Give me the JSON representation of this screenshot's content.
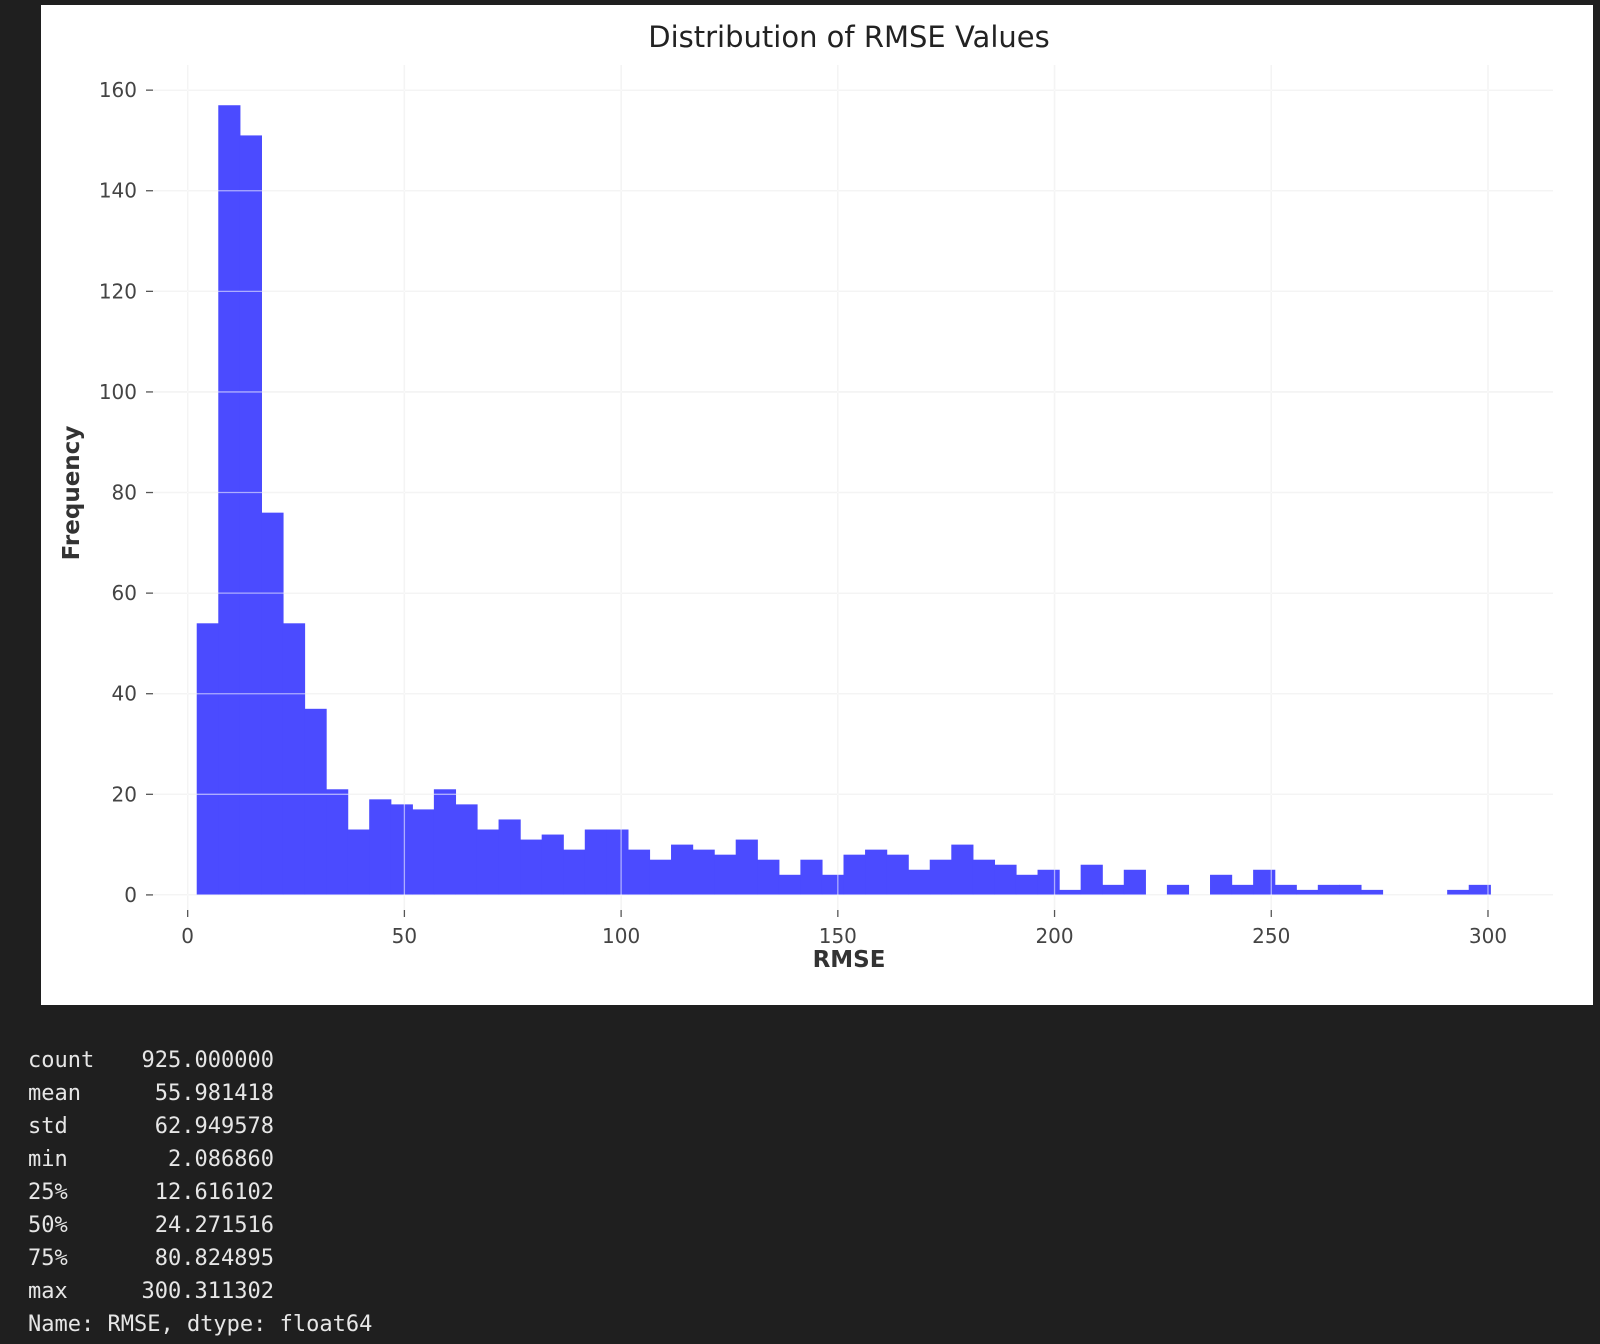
{
  "chart_data": {
    "type": "bar",
    "title": "Distribution of RMSE Values",
    "xlabel": "RMSE",
    "ylabel": "Frequency",
    "xlim": [
      -8,
      315
    ],
    "ylim": [
      -3,
      165
    ],
    "xticks": [
      0,
      50,
      100,
      150,
      200,
      250,
      300
    ],
    "yticks": [
      0,
      20,
      40,
      60,
      80,
      100,
      120,
      140,
      160
    ],
    "grid": true,
    "bar_color": "#4b4bff",
    "bin_start": 2.08686,
    "bin_width": 4.97407,
    "counts": [
      54,
      157,
      151,
      76,
      54,
      37,
      21,
      13,
      19,
      18,
      17,
      21,
      18,
      13,
      15,
      11,
      12,
      9,
      13,
      13,
      9,
      7,
      10,
      9,
      8,
      11,
      7,
      4,
      7,
      4,
      8,
      9,
      8,
      5,
      7,
      10,
      7,
      6,
      4,
      5,
      1,
      6,
      2,
      5,
      0,
      2,
      0,
      4,
      2,
      5,
      2,
      1,
      2,
      2,
      1,
      0,
      0,
      0,
      1,
      2
    ]
  },
  "stats": {
    "rows": [
      {
        "label": "count",
        "value": "925.000000"
      },
      {
        "label": "mean",
        "value": "55.981418"
      },
      {
        "label": "std",
        "value": "62.949578"
      },
      {
        "label": "min",
        "value": "2.086860"
      },
      {
        "label": "25%",
        "value": "12.616102"
      },
      {
        "label": "50%",
        "value": "24.271516"
      },
      {
        "label": "75%",
        "value": "80.824895"
      },
      {
        "label": "max",
        "value": "300.311302"
      }
    ],
    "footer": "Name: RMSE, dtype: float64"
  }
}
